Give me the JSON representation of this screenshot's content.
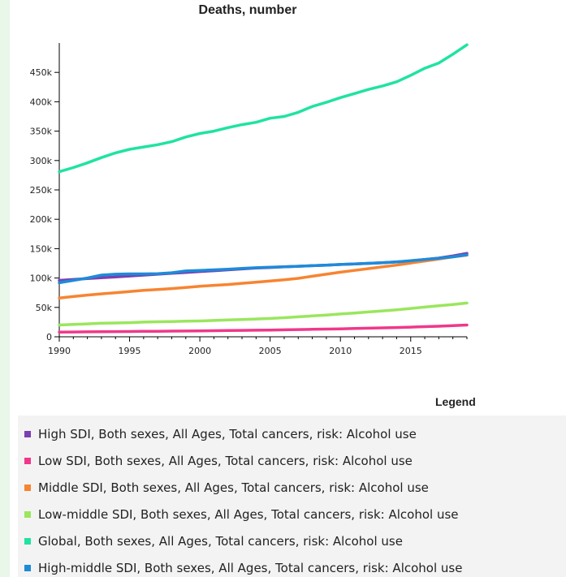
{
  "chart_data": {
    "type": "line",
    "title": "Deaths, number",
    "xlabel": "",
    "ylabel": "",
    "xlim": [
      1990,
      2019
    ],
    "ylim": [
      0,
      500000
    ],
    "x_ticks": [
      "1990",
      "1995",
      "2000",
      "2005",
      "2010",
      "2015"
    ],
    "y_ticks": [
      "0",
      "50k",
      "100k",
      "150k",
      "200k",
      "250k",
      "300k",
      "350k",
      "400k",
      "450k"
    ],
    "grid": false,
    "legend_title": "Legend",
    "legend_placement": "bottom",
    "x": [
      1990,
      1991,
      1992,
      1993,
      1994,
      1995,
      1996,
      1997,
      1998,
      1999,
      2000,
      2001,
      2002,
      2003,
      2004,
      2005,
      2006,
      2007,
      2008,
      2009,
      2010,
      2011,
      2012,
      2013,
      2014,
      2015,
      2016,
      2017,
      2018,
      2019
    ],
    "series": [
      {
        "name": "High SDI, Both sexes, All Ages, Total cancers, risk: Alcohol use",
        "color": "#7b3fb0",
        "values": [
          96000,
          97500,
          99000,
          100500,
          102000,
          103500,
          105000,
          106500,
          108000,
          109500,
          111000,
          112500,
          114000,
          115500,
          117000,
          118000,
          119000,
          120000,
          121000,
          122000,
          123000,
          124000,
          125000,
          126000,
          127500,
          129000,
          131500,
          134000,
          137500,
          142000
        ]
      },
      {
        "name": "Low SDI, Both sexes, All Ages, Total cancers, risk: Alcohol use",
        "color": "#f0388a",
        "values": [
          8000,
          8200,
          8400,
          8600,
          8800,
          9000,
          9200,
          9400,
          9600,
          9800,
          10000,
          10300,
          10600,
          10900,
          11200,
          11500,
          11900,
          12300,
          12700,
          13100,
          13600,
          14100,
          14600,
          15200,
          15800,
          16500,
          17200,
          18000,
          18900,
          20000
        ]
      },
      {
        "name": "Middle SDI, Both sexes, All Ages, Total cancers, risk: Alcohol use",
        "color": "#f78431",
        "values": [
          66000,
          68500,
          71000,
          73000,
          75000,
          77000,
          79000,
          80500,
          82000,
          84000,
          86000,
          87500,
          89000,
          91000,
          93000,
          95000,
          97000,
          99500,
          103000,
          106500,
          110000,
          113000,
          116000,
          119000,
          122000,
          125500,
          129000,
          132500,
          136000,
          139000
        ]
      },
      {
        "name": "Low-middle SDI, Both sexes, All Ages, Total cancers, risk: Alcohol use",
        "color": "#9ae65d",
        "values": [
          20000,
          21000,
          22000,
          23000,
          23500,
          24000,
          25000,
          25500,
          26000,
          26500,
          27000,
          27800,
          28600,
          29400,
          30200,
          31200,
          32500,
          34000,
          35500,
          37000,
          38800,
          40500,
          42300,
          44100,
          46000,
          48200,
          50500,
          52800,
          55000,
          57500
        ]
      },
      {
        "name": "Global, Both sexes, All Ages, Total cancers, risk: Alcohol use",
        "color": "#20e3a0",
        "values": [
          281000,
          288000,
          296000,
          305000,
          313000,
          319000,
          323000,
          327000,
          332000,
          340000,
          346000,
          350000,
          356000,
          361000,
          365000,
          372000,
          375000,
          382000,
          392000,
          399000,
          407000,
          414000,
          421000,
          427000,
          434000,
          445000,
          457000,
          466000,
          481000,
          497000
        ]
      },
      {
        "name": "High-middle SDI, Both sexes, All Ages, Total cancers, risk: Alcohol use",
        "color": "#1e8bd9",
        "values": [
          92000,
          96000,
          100000,
          105000,
          106500,
          107000,
          107000,
          107500,
          109000,
          112000,
          113000,
          114000,
          115000,
          116500,
          117500,
          118500,
          119000,
          120000,
          121000,
          122000,
          123000,
          124000,
          125000,
          126000,
          127500,
          129500,
          131500,
          133500,
          136000,
          139500
        ]
      }
    ]
  }
}
